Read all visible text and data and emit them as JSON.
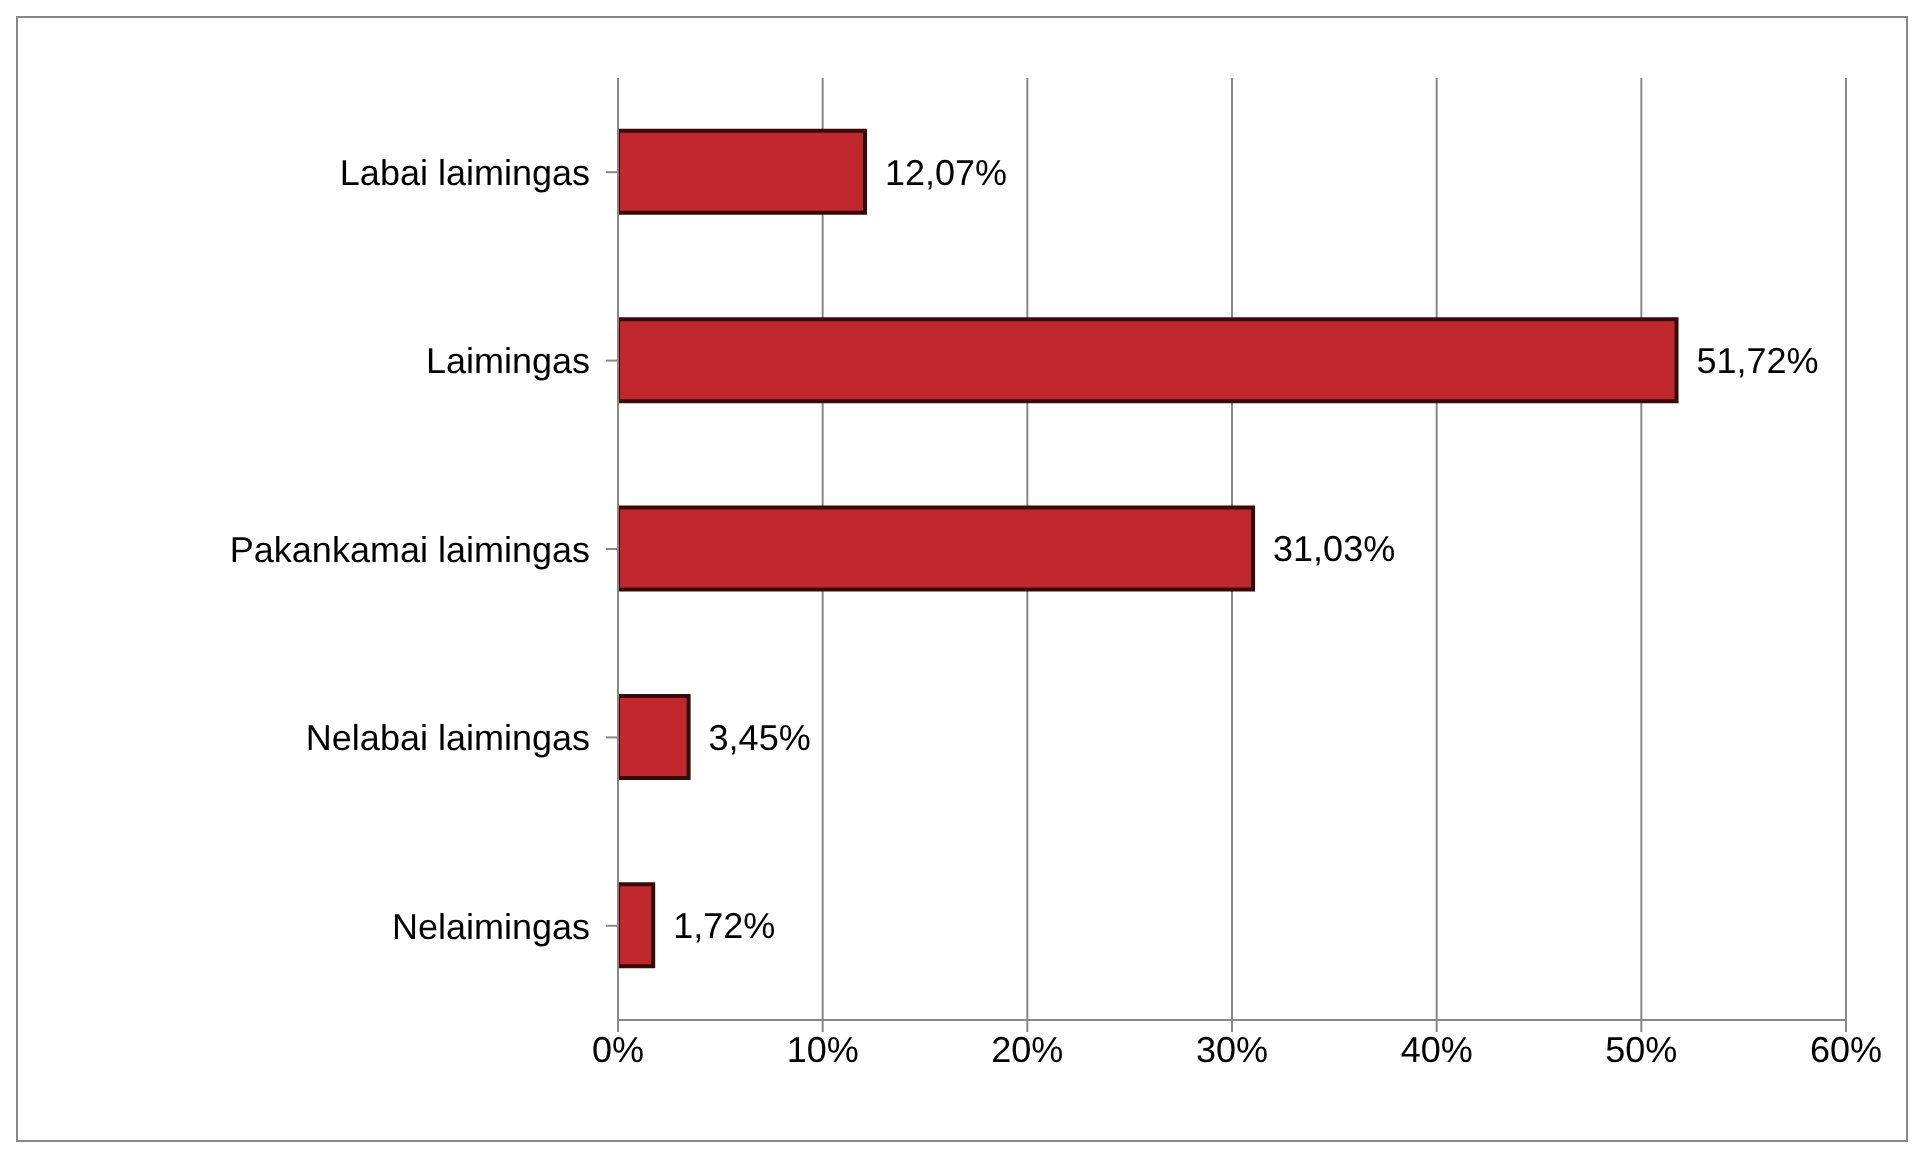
{
  "chart_data": {
    "type": "bar",
    "orientation": "horizontal",
    "categories": [
      "Labai laimingas",
      "Laimingas",
      "Pakankamai laimingas",
      "Nelabai laimingas",
      "Nelaimingas"
    ],
    "values": [
      12.07,
      51.72,
      31.03,
      3.45,
      1.72
    ],
    "value_labels": [
      "12,07%",
      "51,72%",
      "31,03%",
      "3,45%",
      "1,72%"
    ],
    "color": "#c0282d",
    "xlim": [
      0,
      60
    ],
    "xticks": [
      {
        "value": 0,
        "label": "0%"
      },
      {
        "value": 10,
        "label": "10%"
      },
      {
        "value": 20,
        "label": "20%"
      },
      {
        "value": 30,
        "label": "30%"
      },
      {
        "value": 40,
        "label": "40%"
      },
      {
        "value": 50,
        "label": "50%"
      },
      {
        "value": 60,
        "label": "60%"
      }
    ],
    "grid": "x",
    "legend": false
  }
}
